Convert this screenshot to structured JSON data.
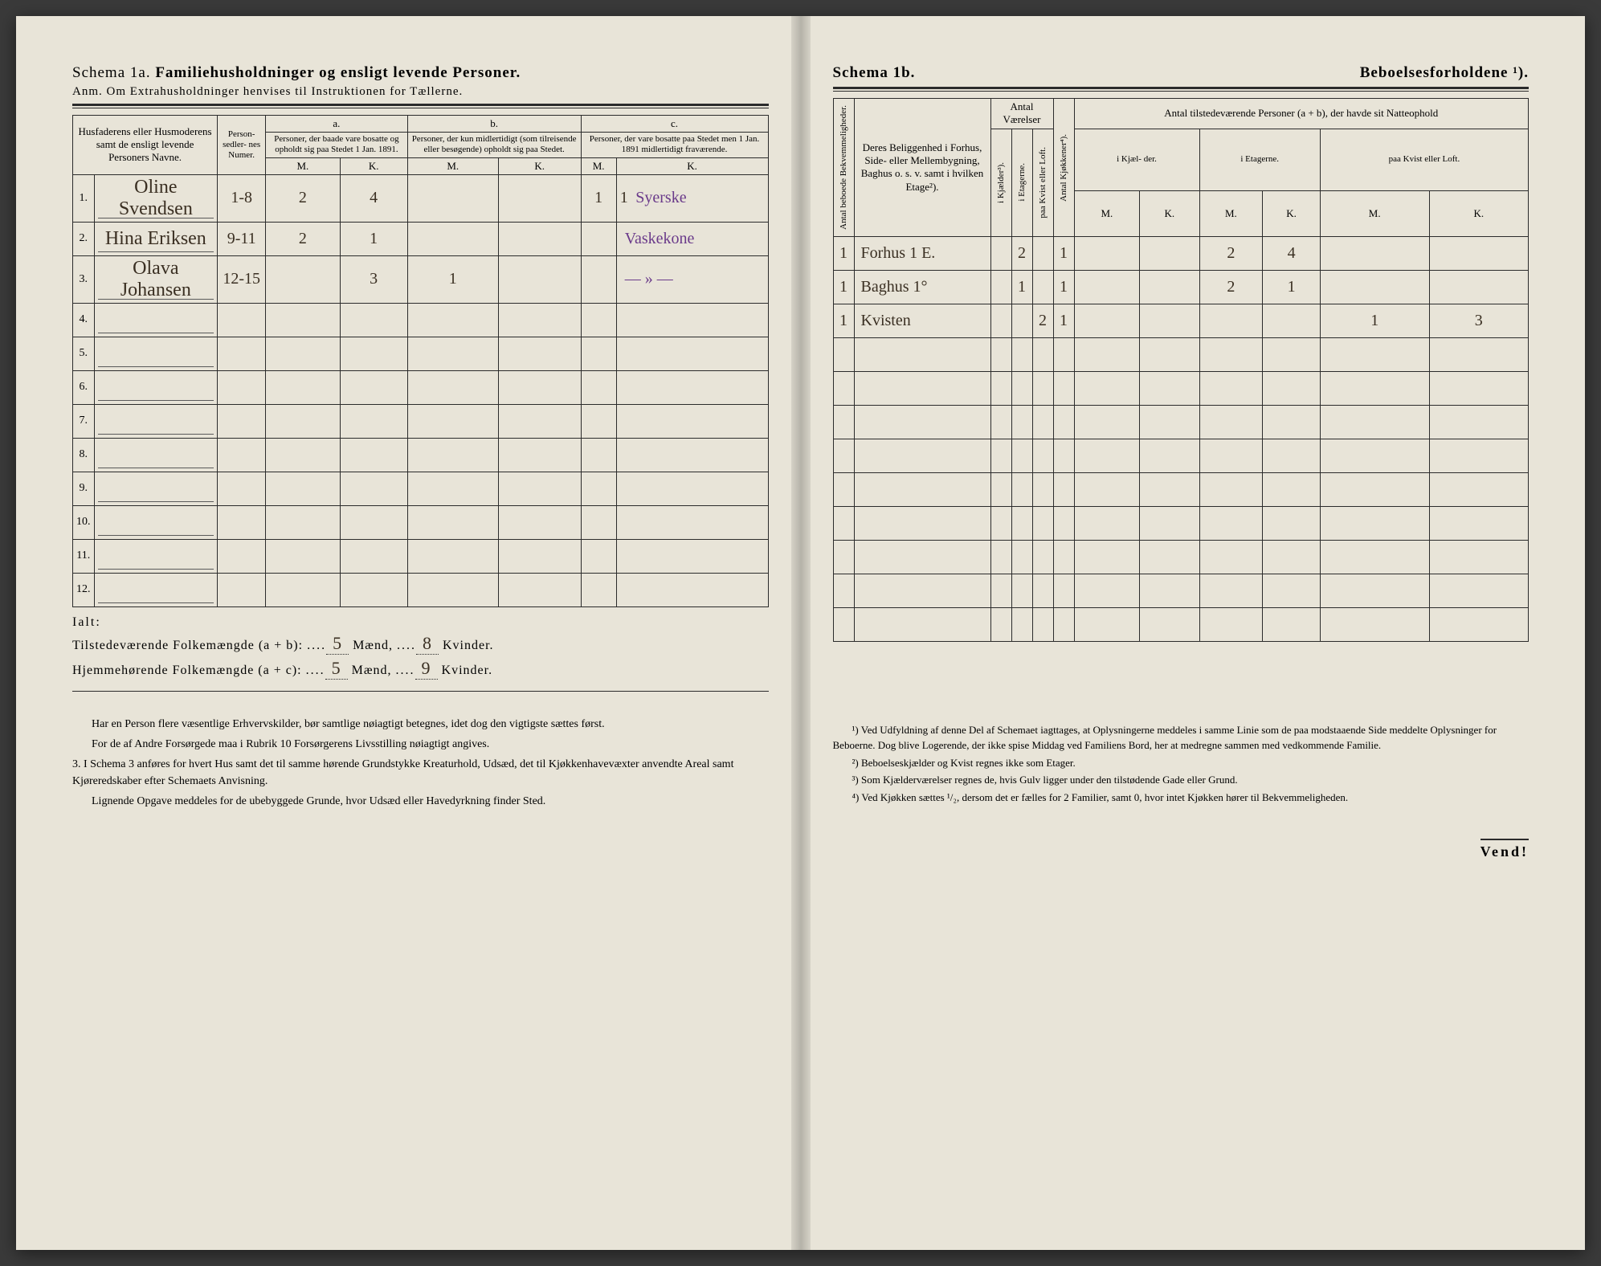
{
  "left": {
    "schema_label": "Schema 1a.",
    "schema_title": "Familiehusholdninger og ensligt levende Personer.",
    "anm": "Anm. Om Extrahusholdninger henvises til Instruktionen for Tællerne.",
    "headers": {
      "name": "Husfaderens eller Husmoderens samt de ensligt levende Personers Navne.",
      "personseddel": "Person-\nsedler-\nnes\nNumer.",
      "a_label": "a.",
      "a_text": "Personer, der baade vare bosatte og opholdt sig paa Stedet 1 Jan. 1891.",
      "b_label": "b.",
      "b_text": "Personer, der kun midlertidigt (som tilreisende eller besøgende) opholdt sig paa Stedet.",
      "c_label": "c.",
      "c_text": "Personer, der vare bosatte paa Stedet men 1 Jan. 1891 midlertidigt fraværende.",
      "M": "M.",
      "K": "K."
    },
    "rows": [
      {
        "n": "1.",
        "name": "Oline Svendsen",
        "ps": "1-8",
        "aM": "2",
        "aK": "4",
        "bM": "",
        "bK": "",
        "cM": "1",
        "cK": "1",
        "note": "Syerske"
      },
      {
        "n": "2.",
        "name": "Hina Eriksen",
        "ps": "9-11",
        "aM": "2",
        "aK": "1",
        "bM": "",
        "bK": "",
        "cM": "",
        "cK": "",
        "note": "Vaskekone"
      },
      {
        "n": "3.",
        "name": "Olava Johansen",
        "ps": "12-15",
        "aM": "",
        "aK": "3",
        "bM": "1",
        "bK": "",
        "cM": "",
        "cK": "",
        "note": "— » —"
      },
      {
        "n": "4."
      },
      {
        "n": "5."
      },
      {
        "n": "6."
      },
      {
        "n": "7."
      },
      {
        "n": "8."
      },
      {
        "n": "9."
      },
      {
        "n": "10."
      },
      {
        "n": "11."
      },
      {
        "n": "12."
      }
    ],
    "ialt": "Ialt:",
    "sum1_label": "Tilstedeværende Folkemængde (a + b):",
    "sum1_m": "5",
    "sum1_k": "8",
    "sum2_label": "Hjemmehørende Folkemængde (a + c):",
    "sum2_m": "5",
    "sum2_k": "9",
    "maend": "Mænd,",
    "kvinder": "Kvinder.",
    "notes": [
      "Har en Person flere væsentlige Erhvervskilder, bør samtlige nøiagtigt betegnes, idet dog den vigtigste sættes først.",
      "For de af Andre Forsørgede maa i Rubrik 10 Forsørgerens Livsstilling nøiagtigt angives.",
      "3. I Schema 3 anføres for hvert Hus samt det til samme hørende Grundstykke Kreaturhold, Udsæd, det til Kjøkkenhavevæxter anvendte Areal samt Kjøreredskaber efter Schemaets Anvisning.",
      "Lignende Opgave meddeles for de ubebyggede Grunde, hvor Udsæd eller Havedyrkning finder Sted."
    ]
  },
  "right": {
    "schema_label": "Schema 1b.",
    "schema_title": "Beboelsesforholdene ¹).",
    "headers": {
      "antal_bebo": "Antal beboede\nBekvemmeligheder.",
      "beliggenhed": "Deres Beliggenhed i Forhus, Side- eller Mellembygning, Baghus o. s. v. samt i hvilken Etage²).",
      "antal_vaer": "Antal\nVærelser",
      "i_kjaelder": "i Kjælder³).",
      "i_etagerne": "i Etagerne.",
      "paa_kvist": "paa Kvist eller\nLoft.",
      "antal_kjok": "Antal Kjøkkener⁴).",
      "tilstede": "Antal tilstedeværende Personer (a + b), der havde sit Natteophold",
      "i_kjael": "i Kjæl-\nder.",
      "i_etag": "i\nEtagerne.",
      "paa_kvist2": "paa\nKvist\neller\nLoft.",
      "M": "M.",
      "K": "K."
    },
    "rows": [
      {
        "ab": "1",
        "bel": "Forhus 1 E.",
        "kj": "",
        "et": "2",
        "kv": "",
        "kk": "1",
        "km": "",
        "kk2": "",
        "em": "2",
        "ek": "4",
        "lm": "",
        "lk": ""
      },
      {
        "ab": "1",
        "bel": "Baghus 1°",
        "kj": "",
        "et": "1",
        "kv": "",
        "kk": "1",
        "km": "",
        "kk2": "",
        "em": "2",
        "ek": "1",
        "lm": "",
        "lk": ""
      },
      {
        "ab": "1",
        "bel": "Kvisten",
        "kj": "",
        "et": "",
        "kv": "2",
        "kk": "1",
        "km": "",
        "kk2": "",
        "em": "",
        "ek": "",
        "lm": "1",
        "lk": "3"
      },
      {},
      {},
      {},
      {},
      {},
      {},
      {},
      {},
      {}
    ],
    "footnotes": [
      "¹) Ved Udfyldning af denne Del af Schemaet iagttages, at Oplysningerne meddeles i samme Linie som de paa modstaaende Side meddelte Oplysninger for Beboerne. Dog blive Logerende, der ikke spise Middag ved Familiens Bord, her at medregne sammen med vedkommende Familie.",
      "²) Beboelseskjælder og Kvist regnes ikke som Etager.",
      "³) Som Kjælderværelser regnes de, hvis Gulv ligger under den tilstødende Gade eller Grund.",
      "⁴) Ved Kjøkken sættes ¹/₂, dersom det er fælles for 2 Familier, samt 0, hvor intet Kjøkken hører til Bekvemmeligheden."
    ],
    "vend": "Vend!"
  },
  "colors": {
    "paper": "#e8e4d8",
    "ink": "#2b2b2b",
    "hand": "#3a2f22",
    "hand_purple": "#6a3a8a"
  }
}
